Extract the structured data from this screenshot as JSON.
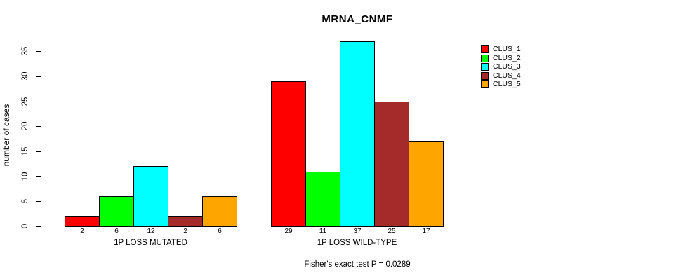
{
  "chart_data": {
    "type": "bar",
    "title": "MRNA_CNMF",
    "ylabel": "number of cases",
    "ylim": [
      0,
      37
    ],
    "yticks": [
      0,
      5,
      10,
      15,
      20,
      25,
      30,
      35
    ],
    "grid": false,
    "legend_position": "right",
    "categories": [
      "1P LOSS MUTATED",
      "1P LOSS WILD-TYPE"
    ],
    "series": [
      {
        "name": "CLUS_1",
        "color": "#ff0000",
        "values": [
          2,
          29
        ]
      },
      {
        "name": "CLUS_2",
        "color": "#00ff00",
        "values": [
          6,
          11
        ]
      },
      {
        "name": "CLUS_3",
        "color": "#00ffff",
        "values": [
          12,
          37
        ]
      },
      {
        "name": "CLUS_4",
        "color": "#a52a2a",
        "values": [
          2,
          25
        ]
      },
      {
        "name": "CLUS_5",
        "color": "#ffa500",
        "values": [
          6,
          17
        ]
      }
    ],
    "groups": [
      {
        "label": "1P LOSS MUTATED",
        "values": [
          2,
          6,
          12,
          2,
          6
        ]
      },
      {
        "label": "1P LOSS WILD-TYPE",
        "values": [
          29,
          11,
          37,
          25,
          17
        ]
      }
    ],
    "value_labels_shown": true,
    "footnote": "Fisher's exact test P = 0.0289"
  }
}
